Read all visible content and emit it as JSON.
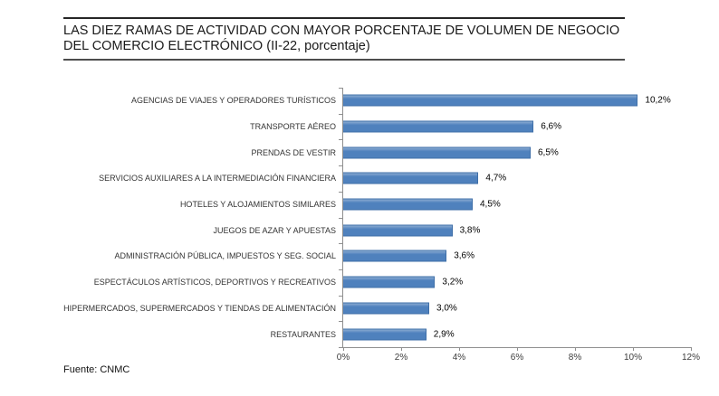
{
  "header": {
    "title_lines": [
      "LAS DIEZ RAMAS DE ACTIVIDAD CON MAYOR PORCENTAJE DE VOLUMEN DE NEGOCIO",
      "DEL COMERCIO ELECTRÓNICO (II-22, porcentaje)"
    ]
  },
  "footer": {
    "source": "Fuente: CNMC"
  },
  "chart_data": {
    "type": "bar",
    "orientation": "horizontal",
    "title": "LAS DIEZ RAMAS DE ACTIVIDAD CON MAYOR PORCENTAJE DE VOLUMEN DE NEGOCIO DEL COMERCIO ELECTRÓNICO (II-22, porcentaje)",
    "categories": [
      "AGENCIAS DE VIAJES Y OPERADORES TURÍSTICOS",
      "TRANSPORTE AÉREO",
      "PRENDAS DE VESTIR",
      "SERVICIOS AUXILIARES A LA INTERMEDIACIÓN FINANCIERA",
      "HOTELES Y ALOJAMIENTOS SIMILARES",
      "JUEGOS DE AZAR Y APUESTAS",
      "ADMINISTRACIÓN PÚBLICA, IMPUESTOS Y SEG. SOCIAL",
      "ESPECTÁCULOS ARTÍSTICOS, DEPORTIVOS Y RECREATIVOS",
      "HIPERMERCADOS, SUPERMERCADOS Y TIENDAS DE ALIMENTACIÓN",
      "RESTAURANTES"
    ],
    "values": [
      10.2,
      6.6,
      6.5,
      4.7,
      4.5,
      3.8,
      3.6,
      3.2,
      3.0,
      2.9
    ],
    "value_labels": [
      "10,2%",
      "6,6%",
      "6,5%",
      "4,7%",
      "4,5%",
      "3,8%",
      "3,6%",
      "3,2%",
      "3,0%",
      "2,9%"
    ],
    "xlabel": "",
    "ylabel": "",
    "xlim": [
      0,
      12
    ],
    "x_ticks": [
      "0%",
      "2%",
      "4%",
      "6%",
      "8%",
      "10%",
      "12%"
    ],
    "grid": false,
    "legend": false,
    "colors": {
      "bar_fill": "#4F81BD",
      "bar_fill_light": "#8AABD2",
      "bar_border": "#3F6FA8",
      "axis": "#8F8F8F"
    }
  }
}
